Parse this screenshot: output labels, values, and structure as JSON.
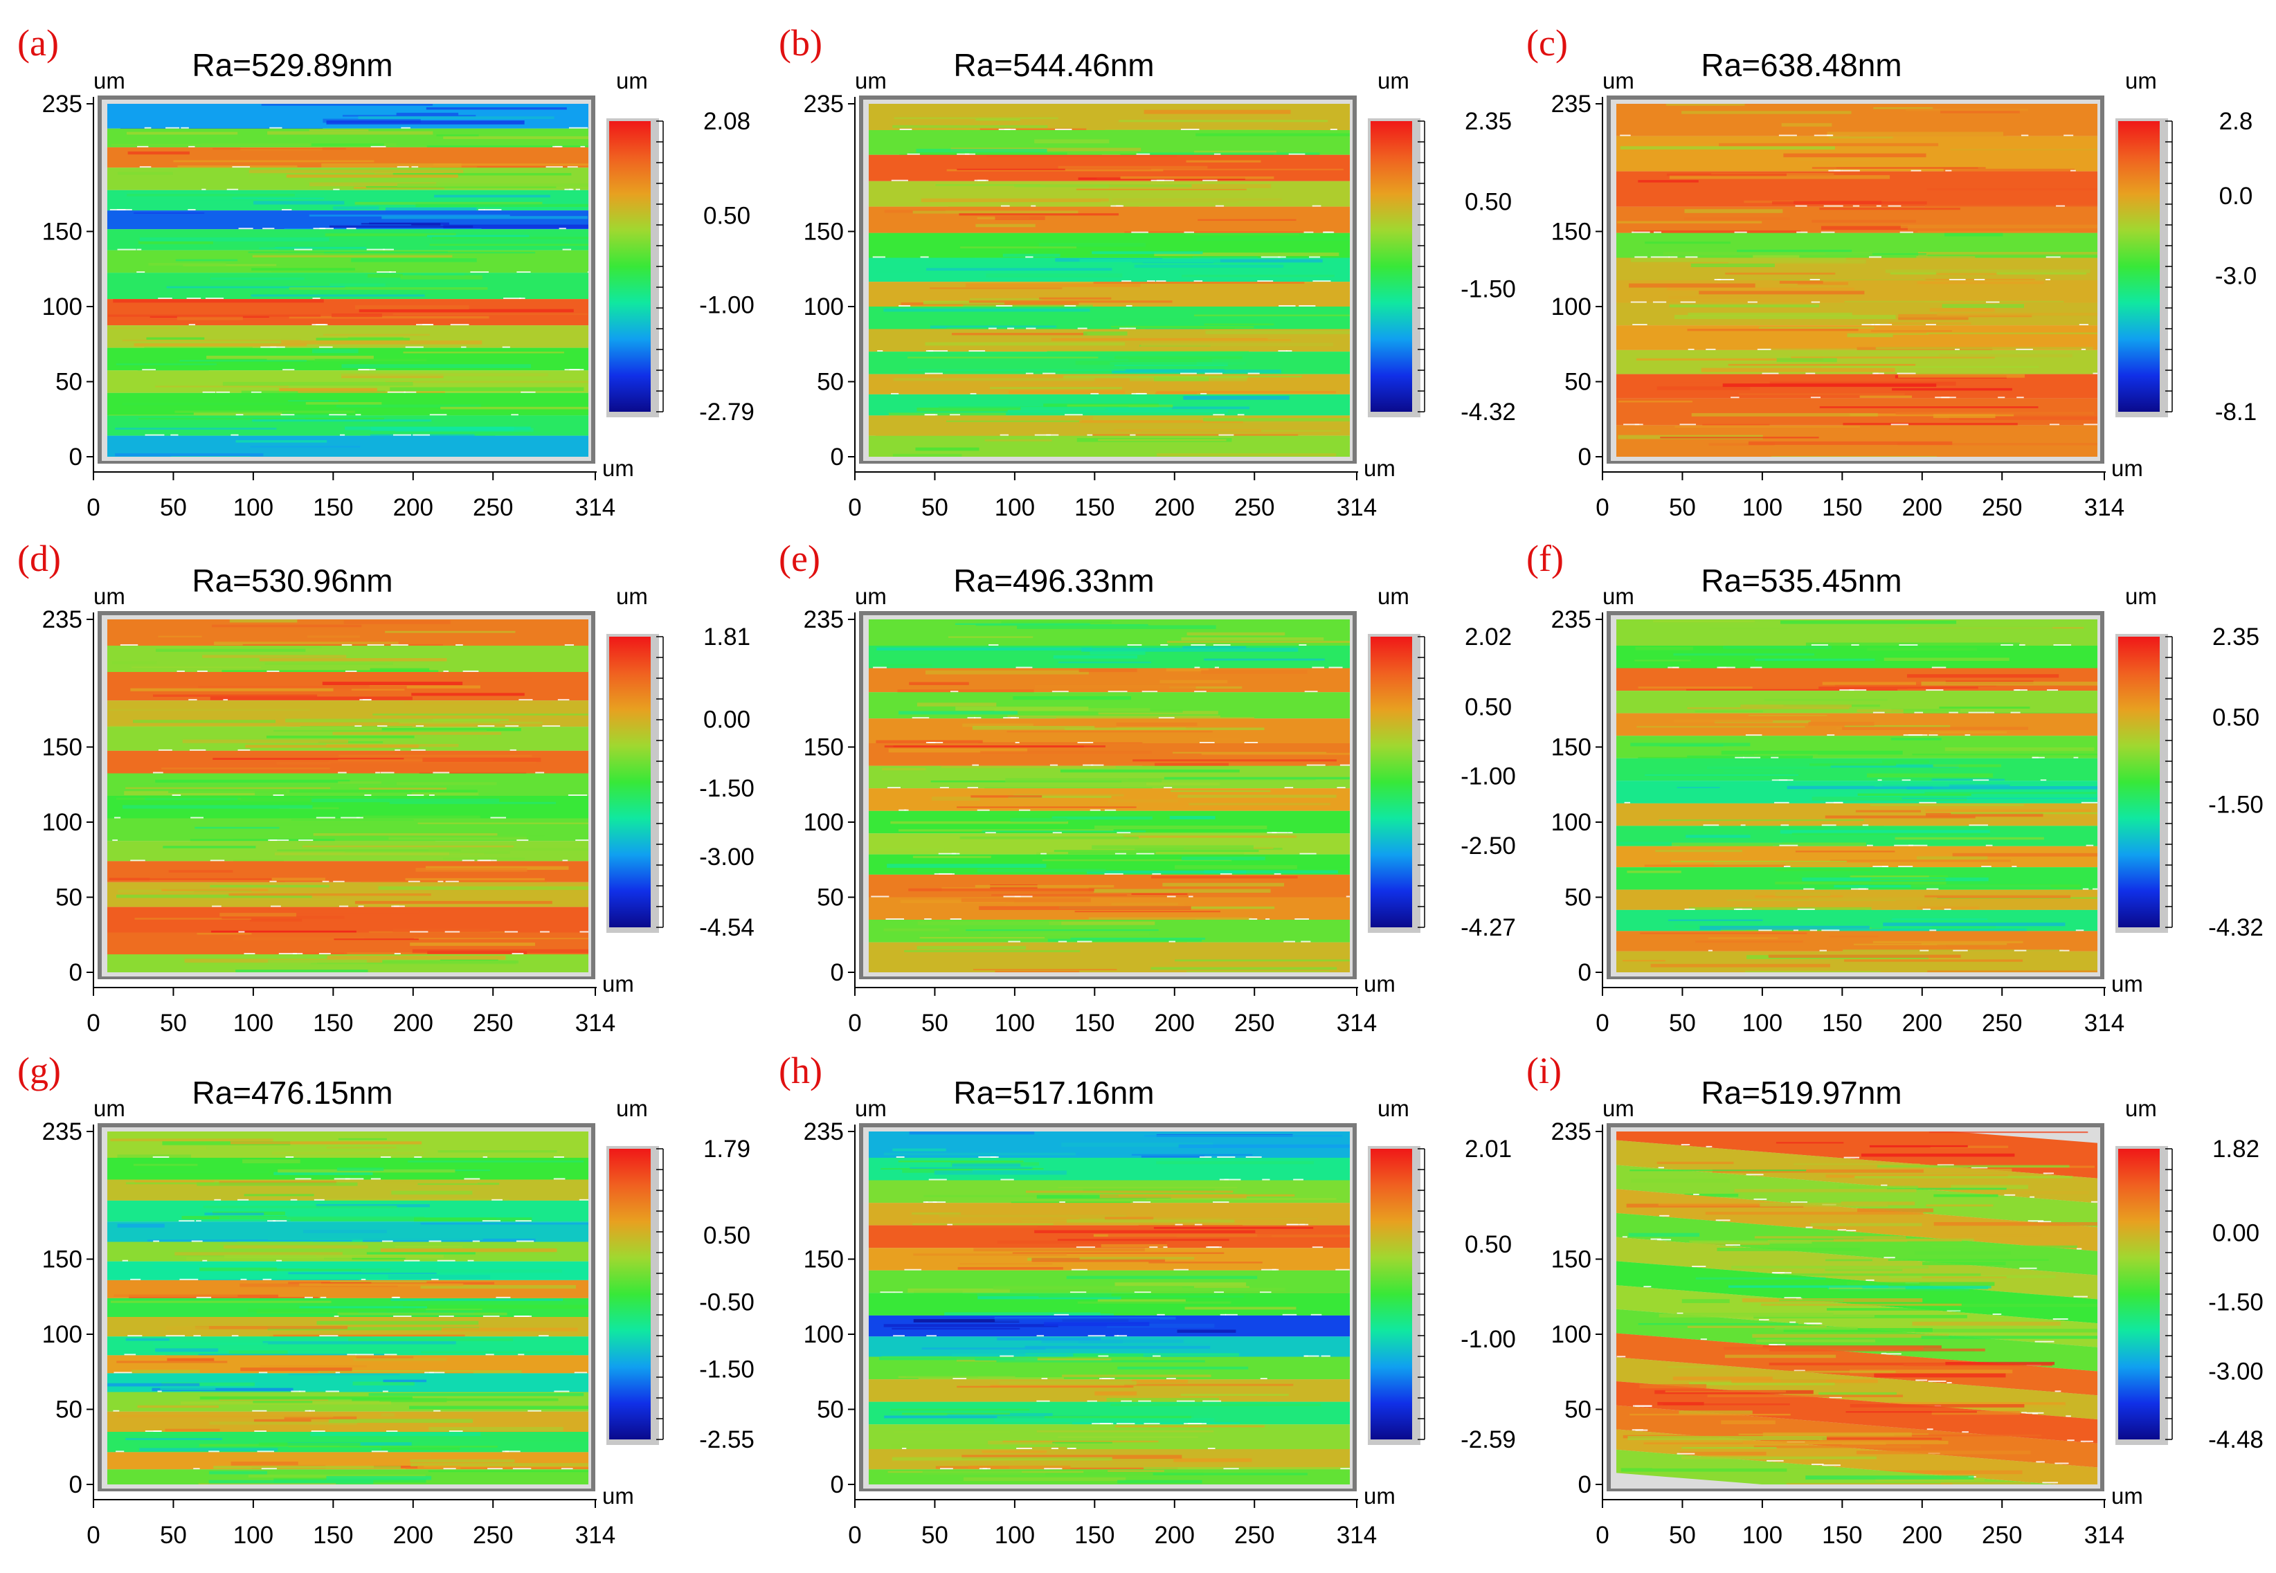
{
  "figure": {
    "colormap": [
      "#0a0a8c",
      "#1030e8",
      "#10a0f0",
      "#10e8a0",
      "#38e838",
      "#a0d830",
      "#e8a020",
      "#f06020",
      "#f01818"
    ],
    "chart_data": [
      {
        "type": "heatmap",
        "label": "(a)",
        "title": "Ra=529.89nm",
        "x_unit": "um",
        "y_unit": "um",
        "cb_unit": "um",
        "cb_unit_bottom": "um",
        "xlim": [
          0,
          314
        ],
        "ylim": [
          0,
          235
        ],
        "xticks": [
          "0",
          "50",
          "100",
          "150",
          "200",
          "250",
          "314"
        ],
        "yticks": [
          "0",
          "50",
          "100",
          "150",
          "235"
        ],
        "colorbar_ticks": [
          "2.08",
          "0.50",
          "-1.00",
          "-2.79"
        ],
        "colorbar_values": [
          2.08,
          0.5,
          -1.0,
          -2.79
        ],
        "colorbar_range": [
          -2.79,
          2.08
        ],
        "bands": [
          {
            "y": 225,
            "level": 0.25
          },
          {
            "y": 212,
            "level": 0.55
          },
          {
            "y": 200,
            "level": 0.82
          },
          {
            "y": 185,
            "level": 0.6
          },
          {
            "y": 170,
            "level": 0.42
          },
          {
            "y": 158,
            "level": 0.18
          },
          {
            "y": 145,
            "level": 0.45
          },
          {
            "y": 130,
            "level": 0.55
          },
          {
            "y": 115,
            "level": 0.45
          },
          {
            "y": 95,
            "level": 0.88
          },
          {
            "y": 80,
            "level": 0.65
          },
          {
            "y": 65,
            "level": 0.5
          },
          {
            "y": 50,
            "level": 0.62
          },
          {
            "y": 35,
            "level": 0.5
          },
          {
            "y": 20,
            "level": 0.45
          },
          {
            "y": 8,
            "level": 0.28
          }
        ]
      },
      {
        "type": "heatmap",
        "label": "(b)",
        "title": "Ra=544.46nm",
        "x_unit": "um",
        "y_unit": "um",
        "cb_unit": "um",
        "cb_unit_bottom": "um",
        "xlim": [
          0,
          314
        ],
        "ylim": [
          0,
          235
        ],
        "xticks": [
          "0",
          "50",
          "100",
          "150",
          "200",
          "250",
          "314"
        ],
        "yticks": [
          "0",
          "50",
          "100",
          "150",
          "235"
        ],
        "colorbar_ticks": [
          "2.35",
          "0.50",
          "-1.50",
          "-4.32"
        ],
        "colorbar_values": [
          2.35,
          0.5,
          -1.5,
          -4.32
        ],
        "colorbar_range": [
          -4.32,
          2.35
        ],
        "bands": [
          {
            "y": 225,
            "level": 0.7
          },
          {
            "y": 210,
            "level": 0.55
          },
          {
            "y": 192,
            "level": 0.88
          },
          {
            "y": 175,
            "level": 0.65
          },
          {
            "y": 158,
            "level": 0.8
          },
          {
            "y": 140,
            "level": 0.5
          },
          {
            "y": 125,
            "level": 0.4
          },
          {
            "y": 108,
            "level": 0.72
          },
          {
            "y": 92,
            "level": 0.45
          },
          {
            "y": 78,
            "level": 0.7
          },
          {
            "y": 62,
            "level": 0.45
          },
          {
            "y": 48,
            "level": 0.72
          },
          {
            "y": 35,
            "level": 0.42
          },
          {
            "y": 20,
            "level": 0.7
          },
          {
            "y": 8,
            "level": 0.6
          }
        ]
      },
      {
        "type": "heatmap",
        "label": "(c)",
        "title": "Ra=638.48nm",
        "x_unit": "um",
        "y_unit": "um",
        "cb_unit": "um",
        "cb_unit_bottom": "um",
        "xlim": [
          0,
          314
        ],
        "ylim": [
          0,
          235
        ],
        "xticks": [
          "0",
          "50",
          "100",
          "150",
          "200",
          "250",
          "314"
        ],
        "yticks": [
          "0",
          "50",
          "100",
          "150",
          "235"
        ],
        "colorbar_ticks": [
          "2.8",
          "0.0",
          "-3.0",
          "-8.1"
        ],
        "colorbar_values": [
          2.8,
          0.0,
          -3.0,
          -8.1
        ],
        "colorbar_range": [
          -8.1,
          2.8
        ],
        "bands": [
          {
            "y": 222,
            "level": 0.8
          },
          {
            "y": 205,
            "level": 0.75
          },
          {
            "y": 175,
            "level": 0.88
          },
          {
            "y": 158,
            "level": 0.82
          },
          {
            "y": 140,
            "level": 0.55
          },
          {
            "y": 125,
            "level": 0.7
          },
          {
            "y": 110,
            "level": 0.72
          },
          {
            "y": 95,
            "level": 0.7
          },
          {
            "y": 80,
            "level": 0.75
          },
          {
            "y": 62,
            "level": 0.65
          },
          {
            "y": 48,
            "level": 0.88
          },
          {
            "y": 30,
            "level": 0.85
          },
          {
            "y": 12,
            "level": 0.8
          }
        ]
      },
      {
        "type": "heatmap",
        "label": "(d)",
        "title": "Ra=530.96nm",
        "x_unit": "um",
        "y_unit": "um",
        "cb_unit": "um",
        "cb_unit_bottom": "um",
        "xlim": [
          0,
          314
        ],
        "ylim": [
          0,
          235
        ],
        "xticks": [
          "0",
          "50",
          "100",
          "150",
          "200",
          "250",
          "314"
        ],
        "yticks": [
          "0",
          "50",
          "100",
          "150",
          "235"
        ],
        "colorbar_ticks": [
          "1.81",
          "0.00",
          "-1.50",
          "-3.00",
          "-4.54"
        ],
        "colorbar_values": [
          1.81,
          0.0,
          -1.5,
          -3.0,
          -4.54
        ],
        "colorbar_range": [
          -4.54,
          1.81
        ],
        "bands": [
          {
            "y": 225,
            "level": 0.82
          },
          {
            "y": 210,
            "level": 0.6
          },
          {
            "y": 190,
            "level": 0.85
          },
          {
            "y": 172,
            "level": 0.7
          },
          {
            "y": 155,
            "level": 0.6
          },
          {
            "y": 140,
            "level": 0.85
          },
          {
            "y": 125,
            "level": 0.55
          },
          {
            "y": 110,
            "level": 0.5
          },
          {
            "y": 95,
            "level": 0.55
          },
          {
            "y": 80,
            "level": 0.6
          },
          {
            "y": 68,
            "level": 0.85
          },
          {
            "y": 52,
            "level": 0.7
          },
          {
            "y": 35,
            "level": 0.88
          },
          {
            "y": 18,
            "level": 0.85
          },
          {
            "y": 6,
            "level": 0.6
          }
        ]
      },
      {
        "type": "heatmap",
        "label": "(e)",
        "title": "Ra=496.33nm",
        "x_unit": "um",
        "y_unit": "um",
        "cb_unit": "um",
        "cb_unit_bottom": "um",
        "xlim": [
          0,
          314
        ],
        "ylim": [
          0,
          235
        ],
        "xticks": [
          "0",
          "50",
          "100",
          "150",
          "200",
          "250",
          "314"
        ],
        "yticks": [
          "0",
          "50",
          "100",
          "150",
          "235"
        ],
        "colorbar_ticks": [
          "2.02",
          "0.50",
          "-1.00",
          "-2.50",
          "-4.27"
        ],
        "colorbar_values": [
          2.02,
          0.5,
          -1.0,
          -2.5,
          -4.27
        ],
        "colorbar_range": [
          -4.27,
          2.02
        ],
        "bands": [
          {
            "y": 225,
            "level": 0.55
          },
          {
            "y": 210,
            "level": 0.45
          },
          {
            "y": 195,
            "level": 0.8
          },
          {
            "y": 178,
            "level": 0.55
          },
          {
            "y": 160,
            "level": 0.78
          },
          {
            "y": 145,
            "level": 0.82
          },
          {
            "y": 130,
            "level": 0.6
          },
          {
            "y": 115,
            "level": 0.75
          },
          {
            "y": 100,
            "level": 0.5
          },
          {
            "y": 85,
            "level": 0.62
          },
          {
            "y": 72,
            "level": 0.5
          },
          {
            "y": 58,
            "level": 0.82
          },
          {
            "y": 42,
            "level": 0.78
          },
          {
            "y": 28,
            "level": 0.55
          },
          {
            "y": 12,
            "level": 0.7
          }
        ]
      },
      {
        "type": "heatmap",
        "label": "(f)",
        "title": "Ra=535.45nm",
        "x_unit": "um",
        "y_unit": "um",
        "cb_unit": "um",
        "cb_unit_bottom": "um",
        "xlim": [
          0,
          314
        ],
        "ylim": [
          0,
          235
        ],
        "xticks": [
          "0",
          "50",
          "100",
          "150",
          "200",
          "250",
          "314"
        ],
        "yticks": [
          "0",
          "50",
          "100",
          "150",
          "235"
        ],
        "colorbar_ticks": [
          "2.35",
          "0.50",
          "-1.50",
          "-4.32"
        ],
        "colorbar_values": [
          2.35,
          0.5,
          -1.5,
          -4.32
        ],
        "colorbar_range": [
          -4.32,
          2.35
        ],
        "bands": [
          {
            "y": 225,
            "level": 0.6
          },
          {
            "y": 210,
            "level": 0.5
          },
          {
            "y": 195,
            "level": 0.85
          },
          {
            "y": 180,
            "level": 0.6
          },
          {
            "y": 165,
            "level": 0.78
          },
          {
            "y": 150,
            "level": 0.55
          },
          {
            "y": 135,
            "level": 0.45
          },
          {
            "y": 120,
            "level": 0.4
          },
          {
            "y": 105,
            "level": 0.72
          },
          {
            "y": 90,
            "level": 0.45
          },
          {
            "y": 78,
            "level": 0.75
          },
          {
            "y": 62,
            "level": 0.48
          },
          {
            "y": 48,
            "level": 0.72
          },
          {
            "y": 35,
            "level": 0.42
          },
          {
            "y": 20,
            "level": 0.8
          },
          {
            "y": 8,
            "level": 0.7
          }
        ]
      },
      {
        "type": "heatmap",
        "label": "(g)",
        "title": "Ra=476.15nm",
        "x_unit": "um",
        "y_unit": "um",
        "cb_unit": "um",
        "cb_unit_bottom": "um",
        "xlim": [
          0,
          314
        ],
        "ylim": [
          0,
          235
        ],
        "xticks": [
          "0",
          "50",
          "100",
          "150",
          "200",
          "250",
          "314"
        ],
        "yticks": [
          "0",
          "50",
          "100",
          "150",
          "235"
        ],
        "colorbar_ticks": [
          "1.79",
          "0.50",
          "-0.50",
          "-1.50",
          "-2.55"
        ],
        "colorbar_values": [
          1.79,
          0.5,
          -0.5,
          -1.5,
          -2.55
        ],
        "colorbar_range": [
          -2.55,
          1.79
        ],
        "bands": [
          {
            "y": 225,
            "level": 0.62
          },
          {
            "y": 210,
            "level": 0.5
          },
          {
            "y": 196,
            "level": 0.68
          },
          {
            "y": 182,
            "level": 0.4
          },
          {
            "y": 168,
            "level": 0.32
          },
          {
            "y": 155,
            "level": 0.6
          },
          {
            "y": 142,
            "level": 0.38
          },
          {
            "y": 130,
            "level": 0.78
          },
          {
            "y": 118,
            "level": 0.48
          },
          {
            "y": 105,
            "level": 0.7
          },
          {
            "y": 92,
            "level": 0.4
          },
          {
            "y": 80,
            "level": 0.75
          },
          {
            "y": 68,
            "level": 0.35
          },
          {
            "y": 55,
            "level": 0.6
          },
          {
            "y": 42,
            "level": 0.72
          },
          {
            "y": 28,
            "level": 0.45
          },
          {
            "y": 15,
            "level": 0.75
          },
          {
            "y": 5,
            "level": 0.55
          }
        ]
      },
      {
        "type": "heatmap",
        "label": "(h)",
        "title": "Ra=517.16nm",
        "x_unit": "um",
        "y_unit": "um",
        "cb_unit": "um",
        "cb_unit_bottom": "um",
        "xlim": [
          0,
          314
        ],
        "ylim": [
          0,
          235
        ],
        "xticks": [
          "0",
          "50",
          "100",
          "150",
          "200",
          "250",
          "314"
        ],
        "yticks": [
          "0",
          "50",
          "100",
          "150",
          "235"
        ],
        "colorbar_ticks": [
          "2.01",
          "0.50",
          "-1.00",
          "-2.59"
        ],
        "colorbar_values": [
          2.01,
          0.5,
          -1.0,
          -2.59
        ],
        "colorbar_range": [
          -2.59,
          2.01
        ],
        "bands": [
          {
            "y": 225,
            "level": 0.28
          },
          {
            "y": 210,
            "level": 0.4
          },
          {
            "y": 195,
            "level": 0.58
          },
          {
            "y": 180,
            "level": 0.72
          },
          {
            "y": 165,
            "level": 0.88
          },
          {
            "y": 150,
            "level": 0.75
          },
          {
            "y": 135,
            "level": 0.55
          },
          {
            "y": 120,
            "level": 0.5
          },
          {
            "y": 105,
            "level": 0.15
          },
          {
            "y": 92,
            "level": 0.32
          },
          {
            "y": 78,
            "level": 0.55
          },
          {
            "y": 62,
            "level": 0.7
          },
          {
            "y": 48,
            "level": 0.42
          },
          {
            "y": 32,
            "level": 0.6
          },
          {
            "y": 15,
            "level": 0.7
          },
          {
            "y": 5,
            "level": 0.55
          }
        ]
      },
      {
        "type": "heatmap",
        "label": "(i)",
        "title": "Ra=519.97nm",
        "x_unit": "um",
        "y_unit": "um",
        "cb_unit": "um",
        "cb_unit_bottom": "um",
        "xlim": [
          0,
          314
        ],
        "ylim": [
          0,
          235
        ],
        "xticks": [
          "0",
          "50",
          "100",
          "150",
          "200",
          "250",
          "314"
        ],
        "yticks": [
          "0",
          "50",
          "100",
          "150",
          "235"
        ],
        "colorbar_ticks": [
          "1.82",
          "0.00",
          "-1.50",
          "-3.00",
          "-4.48"
        ],
        "colorbar_values": [
          1.82,
          0.0,
          -1.5,
          -3.0,
          -4.48
        ],
        "colorbar_range": [
          -4.48,
          1.82
        ],
        "bands": [
          {
            "y": 225,
            "level": 0.88
          },
          {
            "y": 208,
            "level": 0.7
          },
          {
            "y": 192,
            "level": 0.6
          },
          {
            "y": 176,
            "level": 0.72
          },
          {
            "y": 160,
            "level": 0.55
          },
          {
            "y": 144,
            "level": 0.65
          },
          {
            "y": 128,
            "level": 0.5
          },
          {
            "y": 112,
            "level": 0.62
          },
          {
            "y": 96,
            "level": 0.55
          },
          {
            "y": 80,
            "level": 0.85
          },
          {
            "y": 64,
            "level": 0.7
          },
          {
            "y": 48,
            "level": 0.88
          },
          {
            "y": 32,
            "level": 0.82
          },
          {
            "y": 16,
            "level": 0.72
          },
          {
            "y": 5,
            "level": 0.6
          }
        ]
      }
    ]
  }
}
